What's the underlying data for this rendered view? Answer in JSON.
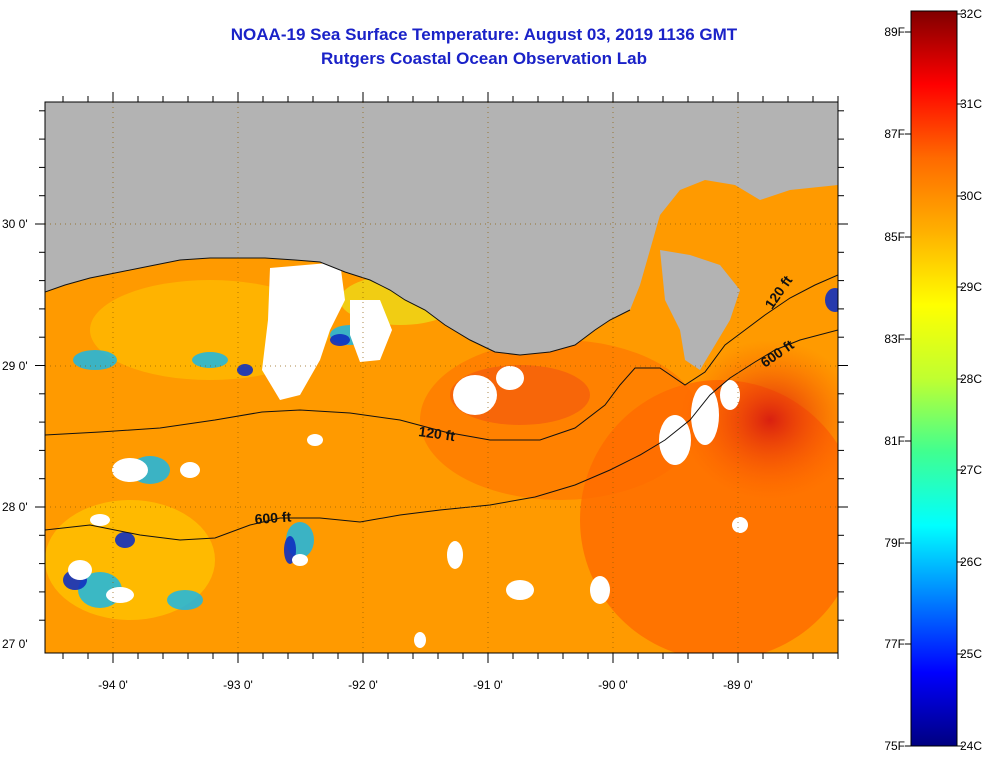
{
  "header": {
    "title": "NOAA-19 Sea Surface Temperature:  August 03, 2019 1136 GMT",
    "subtitle": "Rutgers Coastal Ocean Observation Lab"
  },
  "map": {
    "longitude_labels": [
      "-94 0'",
      "-93 0'",
      "-92 0'",
      "-91 0'",
      "-90 0'",
      "-89 0'"
    ],
    "latitude_labels": [
      "30 0'",
      "29 0'",
      "28 0'",
      "27 0'"
    ],
    "contour_labels": [
      "120 ft",
      "600 ft",
      "120 ft",
      "600 ft"
    ],
    "colors": {
      "land": "#b3b3b3",
      "cloud": "#ffffff",
      "warm_water": "#ff9a00",
      "hot_water": "#ee3010",
      "cool_water": "#19b7e6"
    }
  },
  "colorbar": {
    "fahrenheit_labels": [
      "89F",
      "87F",
      "85F",
      "83F",
      "81F",
      "79F",
      "77F",
      "75F"
    ],
    "celsius_labels": [
      "32C",
      "31C",
      "30C",
      "29C",
      "28C",
      "27C",
      "26C",
      "25C",
      "24C"
    ],
    "stops": [
      "#000080",
      "#0000ff",
      "#0080ff",
      "#00ffff",
      "#40ff90",
      "#c0ff30",
      "#ffff00",
      "#ffb000",
      "#ff6a00",
      "#ff0000",
      "#800000"
    ]
  }
}
